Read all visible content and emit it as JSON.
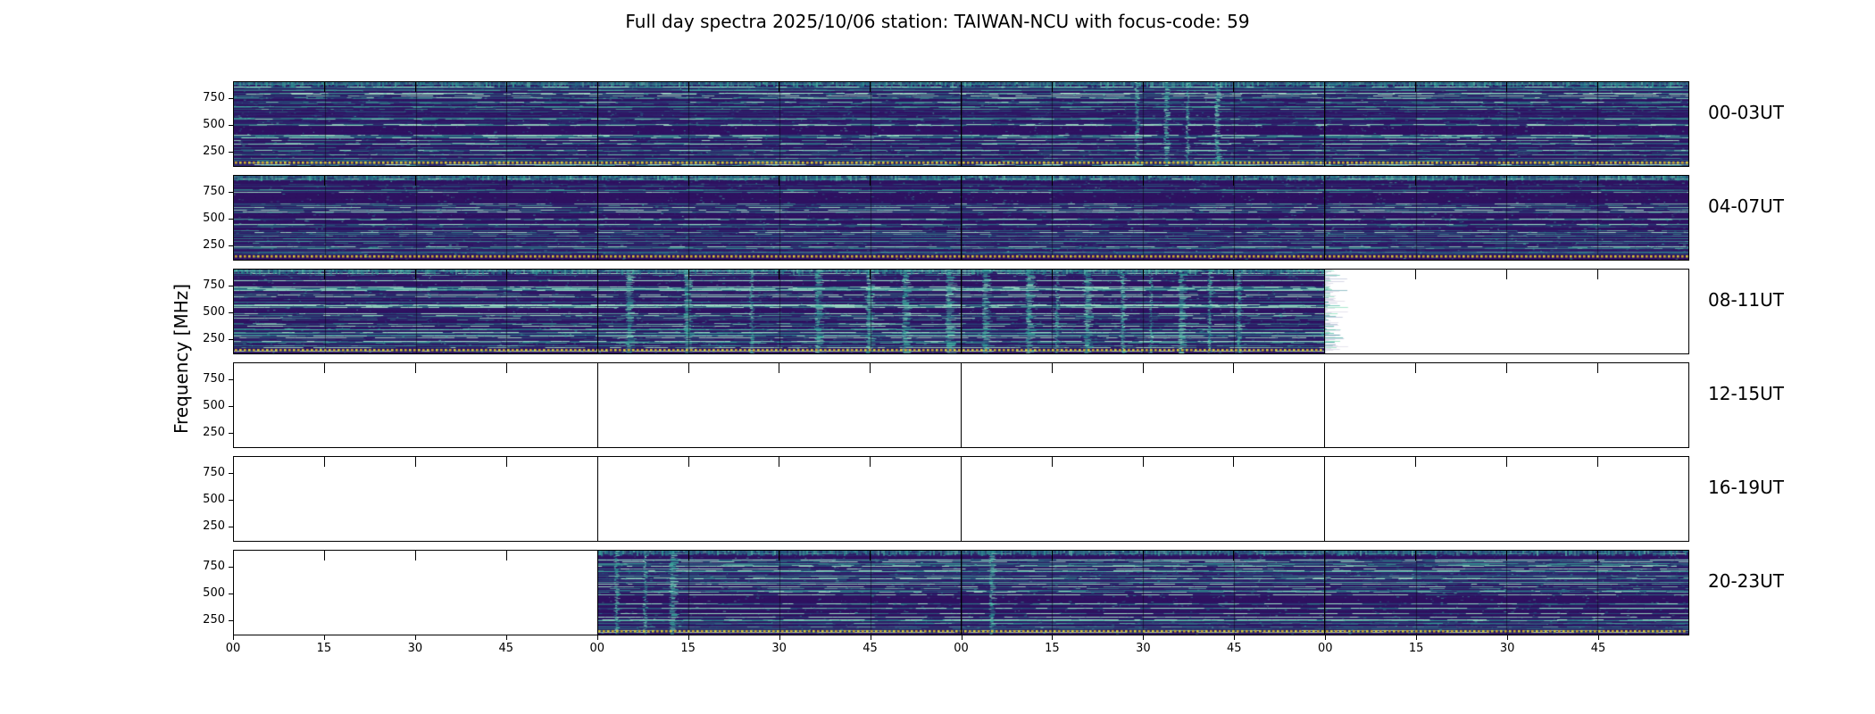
{
  "title": "Full day spectra 2025/10/06 station: TAIWAN-NCU with focus-code: 59",
  "chart_data": {
    "type": "heatmap",
    "title": "Full day spectra 2025/10/06 station: TAIWAN-NCU with focus-code: 59",
    "subtitle": "",
    "xlabel": "",
    "ylabel": "Frequency [MHz]",
    "colormap": "viridis",
    "y_ticks": [
      "750",
      "500",
      "250"
    ],
    "y_range_mhz": [
      0,
      875
    ],
    "hours_per_row": 4,
    "minutes_per_tick": 15,
    "x_tick_labels": [
      "00",
      "15",
      "30",
      "45",
      "00",
      "15",
      "30",
      "45",
      "00",
      "15",
      "30",
      "45",
      "00",
      "15",
      "30",
      "45"
    ],
    "colors": {
      "base": "#2e0f5e",
      "streak": "#2fae9e",
      "bright": "#5ce0c8",
      "dotline": "#d8ca36",
      "frame": "#000000"
    },
    "rows": [
      {
        "label": "00-03UT",
        "start": 0.0,
        "end": 1.0,
        "activity": 0.95,
        "bursts": [
          0.62,
          0.64,
          0.655,
          0.675
        ]
      },
      {
        "label": "04-07UT",
        "start": 0.0,
        "end": 1.0,
        "activity": 1.0,
        "bursts": []
      },
      {
        "label": "08-11UT",
        "start": 0.0,
        "end": 0.75,
        "activity": 1.35,
        "bursts": [
          0.27,
          0.31,
          0.355,
          0.4,
          0.435,
          0.46,
          0.49,
          0.515,
          0.545,
          0.565,
          0.585,
          0.61,
          0.63,
          0.65,
          0.67,
          0.69
        ]
      },
      {
        "label": "12-15UT",
        "start": 0.0,
        "end": 0.0,
        "activity": 0,
        "bursts": []
      },
      {
        "label": "16-19UT",
        "start": 0.0,
        "end": 0.0,
        "activity": 0,
        "bursts": []
      },
      {
        "label": "20-23UT",
        "start": 0.25,
        "end": 1.0,
        "activity": 1.15,
        "bursts": [
          0.262,
          0.282,
          0.3,
          0.52
        ]
      }
    ]
  }
}
